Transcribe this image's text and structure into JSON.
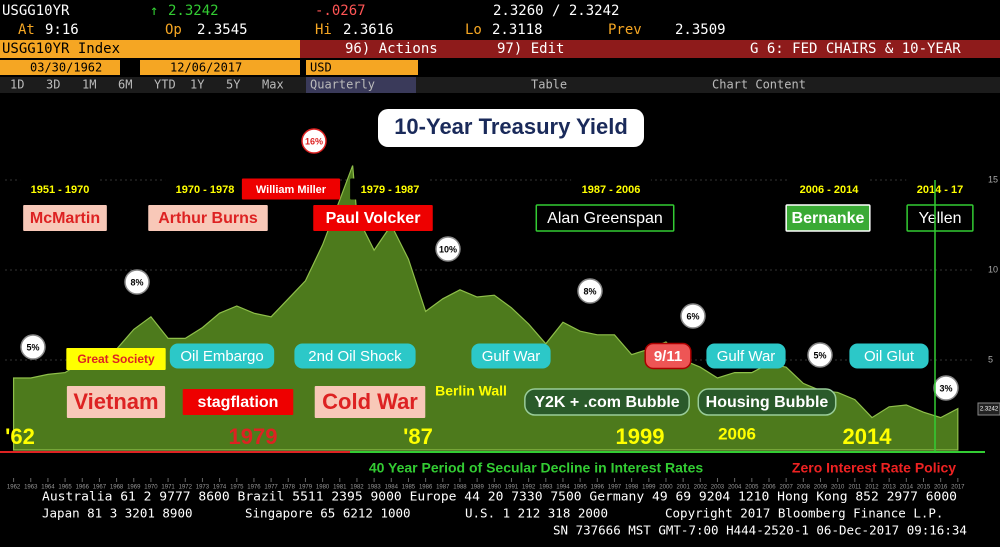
{
  "header": {
    "ticker": "USGG10YR",
    "arrow": "↑",
    "last": "2.3242",
    "change": "-.0267",
    "bid_ask": "2.3260 / 2.3242",
    "at_label": "At",
    "time": "9:16",
    "op_label": "Op",
    "op": "2.3545",
    "hi_label": "Hi",
    "hi": "2.3616",
    "lo_label": "Lo",
    "lo": "2.3118",
    "prev_label": "Prev",
    "prev": "2.3509"
  },
  "toolbar": {
    "security": "USGG10YR Index",
    "actions": "96) Actions",
    "edit": "97) Edit",
    "page": "G 6: FED CHAIRS & 10-YEAR",
    "start": "03/30/1962",
    "end": "12/06/2017",
    "currency": "USD",
    "ranges": [
      "1D",
      "3D",
      "1M",
      "6M",
      "YTD",
      "1Y",
      "5Y",
      "Max"
    ],
    "period": "Quarterly",
    "table": "Table",
    "content": "Chart Content"
  },
  "chart_data": {
    "type": "area",
    "title": "10-Year Treasury Yield",
    "color": "#4d7a1c",
    "x": [
      1962,
      1963,
      1964,
      1965,
      1966,
      1967,
      1968,
      1969,
      1970,
      1971,
      1972,
      1973,
      1974,
      1975,
      1976,
      1977,
      1978,
      1979,
      1980,
      1981,
      1981.75,
      1982,
      1983,
      1984,
      1985,
      1986,
      1987,
      1988,
      1989,
      1990,
      1991,
      1992,
      1993,
      1994,
      1995,
      1996,
      1997,
      1998,
      1999,
      2000,
      2001,
      2002,
      2003,
      2004,
      2005,
      2006,
      2007,
      2008,
      2009,
      2010,
      2011,
      2012,
      2013,
      2014,
      2015,
      2016,
      2017
    ],
    "values": [
      4.0,
      4.0,
      4.2,
      4.3,
      4.9,
      5.1,
      5.6,
      6.7,
      7.4,
      6.2,
      6.2,
      6.8,
      7.6,
      8.0,
      7.6,
      7.4,
      8.4,
      9.4,
      11.4,
      13.9,
      15.8,
      13.0,
      11.1,
      12.5,
      10.6,
      7.7,
      8.4,
      8.9,
      8.5,
      8.6,
      7.9,
      7.0,
      5.9,
      7.1,
      6.6,
      6.4,
      6.4,
      5.3,
      5.6,
      6.0,
      5.0,
      4.6,
      4.0,
      4.3,
      4.3,
      4.8,
      4.6,
      3.7,
      3.3,
      3.2,
      2.8,
      1.8,
      2.4,
      2.5,
      2.1,
      1.8,
      2.3
    ],
    "xlim": [
      1961.5,
      2018
    ],
    "ylim": [
      0,
      20
    ],
    "yticks": [
      5,
      10,
      15
    ],
    "xticks": [
      1962,
      1963,
      1964,
      1965,
      1966,
      1967,
      1968,
      1969,
      1970,
      1971,
      1972,
      1973,
      1974,
      1975,
      1976,
      1977,
      1978,
      1979,
      1980,
      1981,
      1982,
      1983,
      1984,
      1985,
      1986,
      1987,
      1988,
      1989,
      1990,
      1991,
      1992,
      1993,
      1994,
      1995,
      1996,
      1997,
      1998,
      1999,
      2000,
      2001,
      2002,
      2003,
      2004,
      2005,
      2006,
      2007,
      2008,
      2009,
      2010,
      2011,
      2012,
      2013,
      2014,
      2015,
      2016,
      2017
    ],
    "last_value_label": "2.3242",
    "annotations": [
      "1951 - 1970",
      "McMartin",
      "1970 - 1978",
      "Arthur Burns",
      "William Miller",
      "1979 - 1987",
      "Paul Volcker",
      "1987 - 2006",
      "Alan Greenspan",
      "2006 - 2014",
      "Bernanke",
      "2014 - 17",
      "Yellen",
      "16%",
      "8%",
      "10%",
      "8%",
      "6%",
      "5%",
      "5%",
      "3%",
      "Great Society",
      "Oil Embargo",
      "2nd Oil Shock",
      "Gulf War",
      "9/11",
      "Gulf War",
      "Oil Glut",
      "Vietnam",
      "stagflation",
      "Cold War",
      "Berlin Wall",
      "Y2K + .com Bubble",
      "Housing Bubble",
      "'62",
      "1979",
      "'87",
      "1999",
      "2006",
      "2014",
      "40 Year Period of Secular Decline in Interest Rates",
      "Zero Interest Rate Policy"
    ]
  },
  "footer": {
    "line1": "Australia 61 2 9777 8600 Brazil 5511 2395 9000 Europe 44 20 7330 7500 Germany 49 69 9204 1210 Hong Kong 852 2977 6000",
    "japan": "Japan 81 3 3201 8900",
    "singapore": "Singapore 65 6212 1000",
    "us": "U.S. 1 212 318 2000",
    "copyright": "Copyright 2017 Bloomberg Finance L.P.",
    "session": "SN 737666 MST  GMT-7:00 H444-2520-1 06-Dec-2017 09:16:34"
  }
}
